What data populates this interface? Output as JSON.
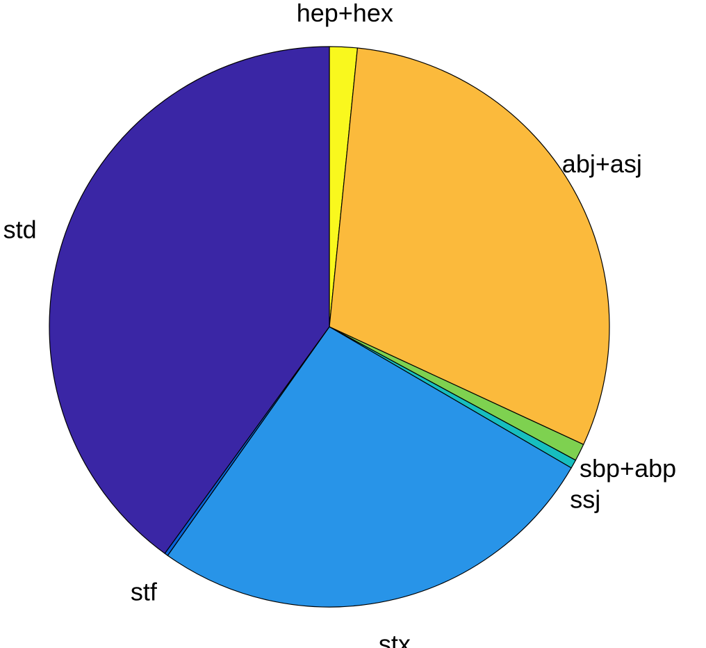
{
  "chart_data": {
    "type": "pie",
    "title": "",
    "start_angle_deg": 90,
    "direction": "clockwise",
    "slices": [
      {
        "label": "hep+hex",
        "value": 1.6,
        "color": "#F9F81E"
      },
      {
        "label": "abj+asj",
        "value": 30.3,
        "color": "#FBBA3C"
      },
      {
        "label": "sbp+abp",
        "value": 1.0,
        "color": "#7ED150"
      },
      {
        "label": "ssj",
        "value": 0.5,
        "color": "#17BEBF"
      },
      {
        "label": "stx",
        "value": 26.4,
        "color": "#2894E8"
      },
      {
        "label": "stf",
        "value": 0.2,
        "color": "#0A63D8"
      },
      {
        "label": "std",
        "value": 40.0,
        "color": "#3A26A5"
      }
    ]
  }
}
